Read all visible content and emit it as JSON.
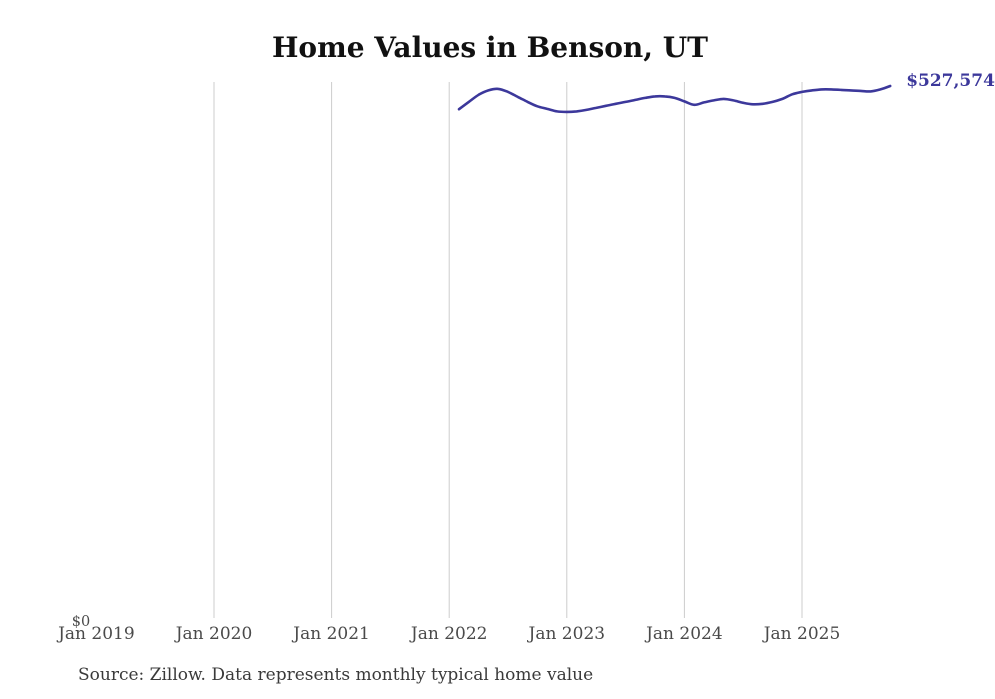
{
  "header": {
    "title": "Home Values in Benson, UT"
  },
  "line_end_label": "$527,574",
  "axes": {
    "y_zero_label": "$0"
  },
  "footer": {
    "source_note": "Source: Zillow. Data represents monthly typical home value"
  },
  "colors": {
    "line": "#3c389b",
    "end_label": "#3c389b",
    "grid": "#cccccc",
    "tick": "#4a4a4a",
    "title": "#111111",
    "source": "#3a3a3a"
  },
  "chart_data": {
    "type": "line",
    "title": "Home Values in Benson, UT",
    "xlabel": "",
    "ylabel": "",
    "ylim": [
      0,
      560000
    ],
    "grid": "vertical",
    "legend": "none",
    "x_ticks": [
      "Jan 2019",
      "Jan 2020",
      "Jan 2021",
      "Jan 2022",
      "Jan 2023",
      "Jan 2024",
      "Jan 2025"
    ],
    "gridline_ticks": [
      "Jan 2020",
      "Jan 2021",
      "Jan 2022",
      "Jan 2023",
      "Jan 2024",
      "Jan 2025"
    ],
    "y_tick_labels": [
      "$0"
    ],
    "annotations": [
      {
        "text": "$527,574",
        "position": "end-of-line"
      }
    ],
    "series": [
      {
        "name": "typical-home-value",
        "x": [
          "Jan 2022",
          "Feb 2022",
          "Mar 2022",
          "Apr 2022",
          "May 2022",
          "Jun 2022",
          "Jul 2022",
          "Aug 2022",
          "Sep 2022",
          "Oct 2022",
          "Nov 2022",
          "Dec 2022",
          "Jan 2023",
          "Feb 2023",
          "Mar 2023",
          "Apr 2023",
          "May 2023",
          "Jun 2023",
          "Jul 2023",
          "Aug 2023",
          "Sep 2023",
          "Oct 2023",
          "Nov 2023",
          "Dec 2023",
          "Jan 2024",
          "Feb 2024",
          "Mar 2024",
          "Apr 2024",
          "May 2024",
          "Jun 2024",
          "Jul 2024",
          "Aug 2024",
          "Sep 2024",
          "Oct 2024",
          "Nov 2024",
          "Dec 2024",
          "Jan 2025",
          "Feb 2025",
          "Mar 2025",
          "Apr 2025",
          "May 2025",
          "Jun 2025",
          "Jul 2025",
          "Aug 2025",
          "Sep 2025"
        ],
        "values": [
          504600,
          511800,
          518800,
          523200,
          524700,
          521700,
          516800,
          511800,
          507400,
          504900,
          502400,
          501900,
          502400,
          503900,
          505900,
          507900,
          509900,
          511800,
          513800,
          515800,
          517300,
          517300,
          515800,
          512300,
          508900,
          511300,
          513300,
          514800,
          513300,
          510900,
          509400,
          509900,
          511800,
          514800,
          519300,
          521700,
          523200,
          524200,
          524200,
          523700,
          523200,
          522700,
          522200,
          524200,
          527574
        ]
      }
    ]
  }
}
